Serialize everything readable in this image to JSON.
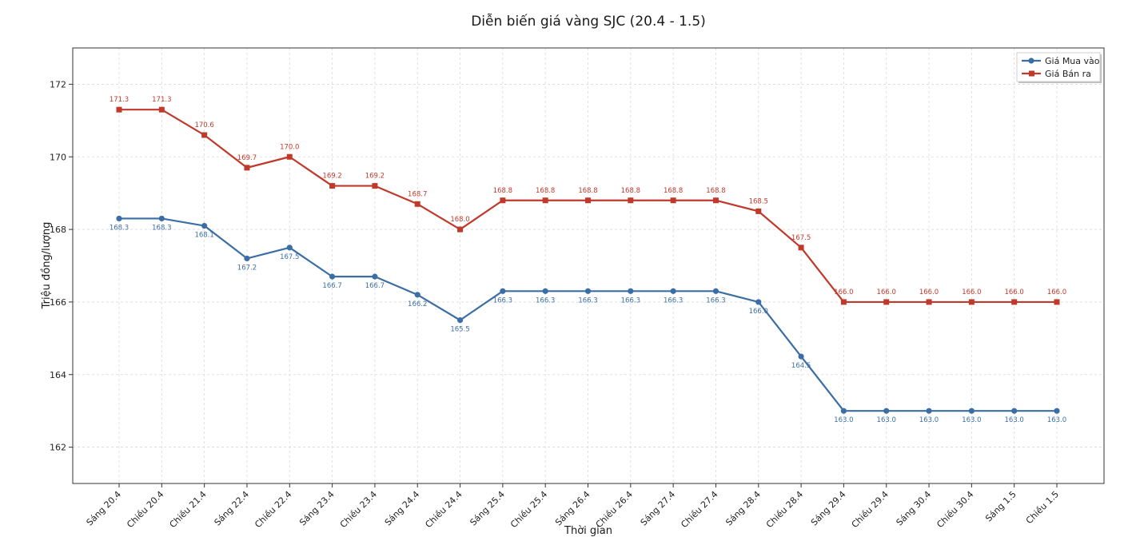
{
  "chart_data": {
    "type": "line",
    "title": "Diễn biến giá vàng SJC (20.4 - 1.5)",
    "xlabel": "Thời gian",
    "ylabel": "Triệu đồng/lượng",
    "ylim": [
      161,
      173
    ],
    "yticks": [
      162,
      164,
      166,
      168,
      170,
      172
    ],
    "grid": true,
    "legend_position": "top-right",
    "categories": [
      "Sáng 20.4",
      "Chiều 20.4",
      "Chiều 21.4",
      "Sáng 22.4",
      "Chiều 22.4",
      "Sáng 23.4",
      "Chiều 23.4",
      "Sáng 24.4",
      "Chiều 24.4",
      "Sáng 25.4",
      "Chiều 25.4",
      "Sáng 26.4",
      "Chiều 26.4",
      "Sáng 27.4",
      "Chiều 27.4",
      "Sáng 28.4",
      "Chiều 28.4",
      "Sáng 29.4",
      "Chiều 29.4",
      "Sáng 30.4",
      "Chiều 30.4",
      "Sáng 1.5",
      "Chiều 1.5"
    ],
    "series": [
      {
        "name": "Giá Mua vào",
        "color": "#3b6ea5",
        "marker": "circle",
        "values": [
          168.3,
          168.3,
          168.1,
          167.2,
          167.5,
          166.7,
          166.7,
          166.2,
          165.5,
          166.3,
          166.3,
          166.3,
          166.3,
          166.3,
          166.3,
          166.0,
          164.5,
          163.0,
          163.0,
          163.0,
          163.0,
          163.0,
          163.0
        ]
      },
      {
        "name": "Giá Bán ra",
        "color": "#c0392b",
        "marker": "square",
        "values": [
          171.3,
          171.3,
          170.6,
          169.7,
          170.0,
          169.2,
          169.2,
          168.7,
          168.0,
          168.8,
          168.8,
          168.8,
          168.8,
          168.8,
          168.8,
          168.5,
          167.5,
          166.0,
          166.0,
          166.0,
          166.0,
          166.0,
          166.0
        ]
      }
    ]
  }
}
